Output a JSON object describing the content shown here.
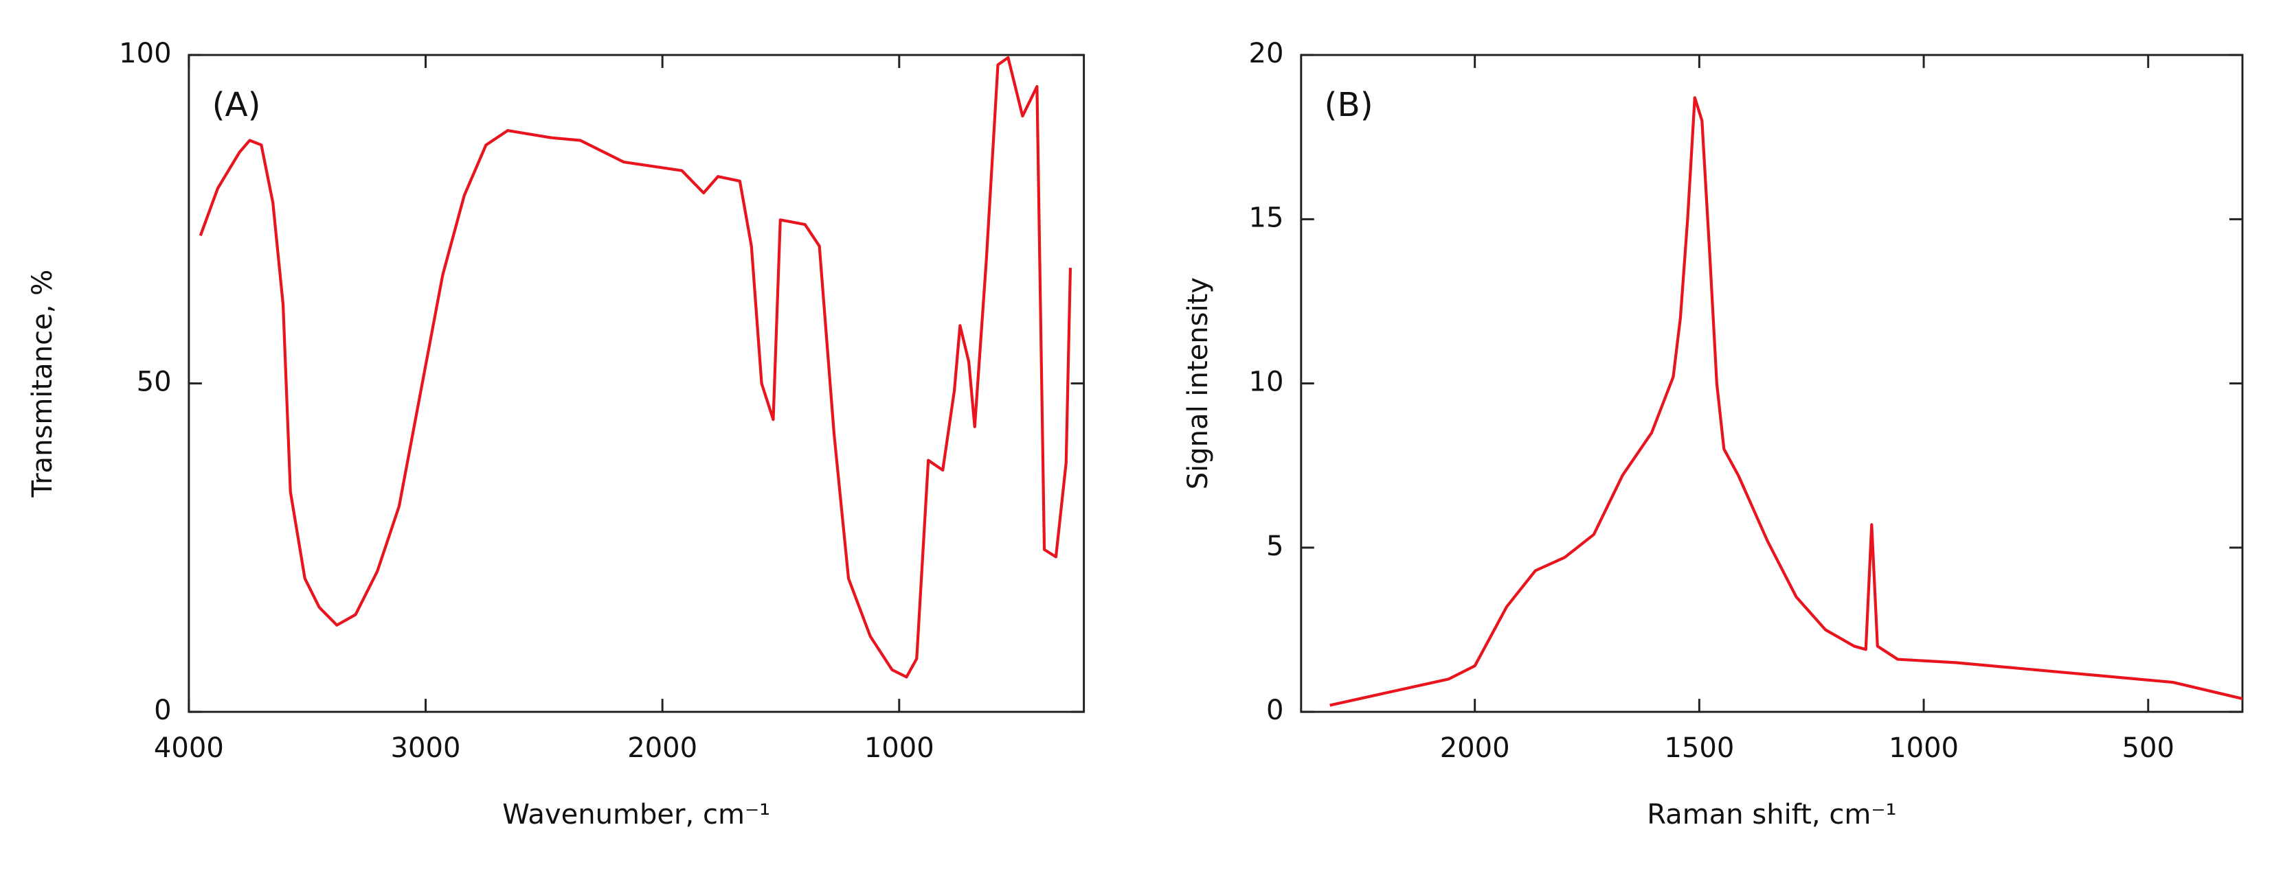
{
  "chart_data": [
    {
      "type": "line",
      "annotation": "(A)",
      "xlabel": "Wavenumber, cm⁻¹",
      "ylabel": "Transmitance, %",
      "xlim": [
        4000,
        220
      ],
      "xticks": [
        4000,
        3000,
        2000,
        1000
      ],
      "ylim": [
        0,
        100
      ],
      "yticks": [
        0,
        50,
        100
      ],
      "x": [
        3951,
        3878,
        3786,
        3743,
        3694,
        3645,
        3602,
        3571,
        3510,
        3449,
        3375,
        3296,
        3204,
        3112,
        3020,
        2928,
        2837,
        2745,
        2653,
        2469,
        2347,
        2163,
        1918,
        1826,
        1765,
        1673,
        1624,
        1581,
        1532,
        1502,
        1398,
        1337,
        1275,
        1214,
        1122,
        1030,
        969,
        926,
        877,
        816,
        767,
        743,
        706,
        681,
        632,
        583,
        540,
        479,
        418,
        387,
        338,
        295,
        277
      ],
      "series": [
        {
          "color": "#e8141e",
          "values": [
            72.5,
            79.7,
            85.2,
            87,
            86.3,
            77.5,
            62,
            33.5,
            20.3,
            15.9,
            13.2,
            14.8,
            21.4,
            31.3,
            48.9,
            66.5,
            78.6,
            86.3,
            88.5,
            87.4,
            87,
            83.7,
            82.4,
            79,
            81.5,
            80.8,
            70.9,
            50,
            44.5,
            74.9,
            74.2,
            70.9,
            42.3,
            20.3,
            11.5,
            6.4,
            5.3,
            8.1,
            38.3,
            36.8,
            48.9,
            58.8,
            53.3,
            43.4,
            68.7,
            98.5,
            99.6,
            90.7,
            95.2,
            24.7,
            23.6,
            37.9,
            67.6
          ]
        }
      ]
    },
    {
      "type": "line",
      "annotation": "(B)",
      "xlabel": "Raman shift, cm⁻¹",
      "ylabel": "Signal intensity",
      "xlim": [
        2387,
        290
      ],
      "xticks": [
        2000,
        1500,
        1000,
        500
      ],
      "ylim": [
        0,
        20
      ],
      "yticks": [
        0,
        5,
        10,
        15,
        20
      ],
      "x": [
        2323,
        2058,
        2000,
        1929,
        1865,
        1800,
        1735,
        1671,
        1606,
        1558,
        1542,
        1526,
        1510,
        1494,
        1477,
        1461,
        1445,
        1413,
        1348,
        1284,
        1219,
        1155,
        1129,
        1116,
        1103,
        1058,
        929,
        768,
        606,
        445,
        290
      ],
      "series": [
        {
          "color": "#e8141e",
          "values": [
            0.2,
            1.0,
            1.4,
            3.2,
            4.3,
            4.7,
            5.4,
            7.2,
            8.5,
            10.2,
            12,
            15,
            18.7,
            18,
            14,
            10,
            8,
            7.2,
            5.2,
            3.5,
            2.5,
            2.0,
            1.9,
            5.7,
            2.0,
            1.6,
            1.5,
            1.3,
            1.1,
            0.9,
            0.4
          ]
        }
      ]
    }
  ]
}
